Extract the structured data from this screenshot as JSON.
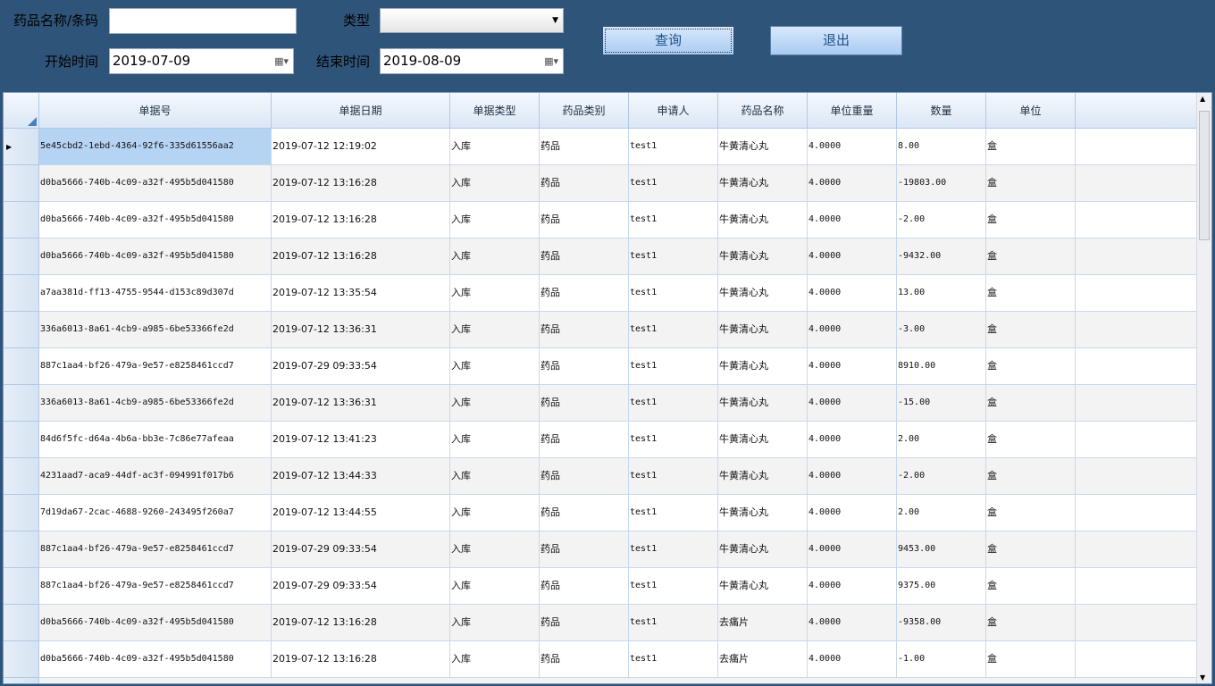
{
  "filters": {
    "name_label": "药品名称/条码",
    "type_label": "类型",
    "start_label": "开始时间",
    "start_value": "2019-07-09",
    "end_label": "结束时间",
    "end_value": "2019-08-09"
  },
  "buttons": {
    "query": "查询",
    "exit": "退出"
  },
  "table": {
    "columns": [
      "单据号",
      "单据日期",
      "单据类型",
      "药品类别",
      "申请人",
      "药品名称",
      "单位重量",
      "数量",
      "单位"
    ],
    "rows": [
      [
        "5e45cbd2-1ebd-4364-92f6-335d61556aa2",
        "2019-07-12 12:19:02",
        "入库",
        "药品",
        "test1",
        "牛黄清心丸",
        "4.0000",
        "8.00",
        "盒"
      ],
      [
        "d0ba5666-740b-4c09-a32f-495b5d041580",
        "2019-07-12 13:16:28",
        "入库",
        "药品",
        "test1",
        "牛黄清心丸",
        "4.0000",
        "-19803.00",
        "盒"
      ],
      [
        "d0ba5666-740b-4c09-a32f-495b5d041580",
        "2019-07-12 13:16:28",
        "入库",
        "药品",
        "test1",
        "牛黄清心丸",
        "4.0000",
        "-2.00",
        "盒"
      ],
      [
        "d0ba5666-740b-4c09-a32f-495b5d041580",
        "2019-07-12 13:16:28",
        "入库",
        "药品",
        "test1",
        "牛黄清心丸",
        "4.0000",
        "-9432.00",
        "盒"
      ],
      [
        "a7aa381d-ff13-4755-9544-d153c89d307d",
        "2019-07-12 13:35:54",
        "入库",
        "药品",
        "test1",
        "牛黄清心丸",
        "4.0000",
        "13.00",
        "盒"
      ],
      [
        "336a6013-8a61-4cb9-a985-6be53366fe2d",
        "2019-07-12 13:36:31",
        "入库",
        "药品",
        "test1",
        "牛黄清心丸",
        "4.0000",
        "-3.00",
        "盒"
      ],
      [
        "887c1aa4-bf26-479a-9e57-e8258461ccd7",
        "2019-07-29 09:33:54",
        "入库",
        "药品",
        "test1",
        "牛黄清心丸",
        "4.0000",
        "8910.00",
        "盒"
      ],
      [
        "336a6013-8a61-4cb9-a985-6be53366fe2d",
        "2019-07-12 13:36:31",
        "入库",
        "药品",
        "test1",
        "牛黄清心丸",
        "4.0000",
        "-15.00",
        "盒"
      ],
      [
        "84d6f5fc-d64a-4b6a-bb3e-7c86e77afeaa",
        "2019-07-12 13:41:23",
        "入库",
        "药品",
        "test1",
        "牛黄清心丸",
        "4.0000",
        "2.00",
        "盒"
      ],
      [
        "4231aad7-aca9-44df-ac3f-094991f017b6",
        "2019-07-12 13:44:33",
        "入库",
        "药品",
        "test1",
        "牛黄清心丸",
        "4.0000",
        "-2.00",
        "盒"
      ],
      [
        "7d19da67-2cac-4688-9260-243495f260a7",
        "2019-07-12 13:44:55",
        "入库",
        "药品",
        "test1",
        "牛黄清心丸",
        "4.0000",
        "2.00",
        "盒"
      ],
      [
        "887c1aa4-bf26-479a-9e57-e8258461ccd7",
        "2019-07-29 09:33:54",
        "入库",
        "药品",
        "test1",
        "牛黄清心丸",
        "4.0000",
        "9453.00",
        "盒"
      ],
      [
        "887c1aa4-bf26-479a-9e57-e8258461ccd7",
        "2019-07-29 09:33:54",
        "入库",
        "药品",
        "test1",
        "牛黄清心丸",
        "4.0000",
        "9375.00",
        "盒"
      ],
      [
        "d0ba5666-740b-4c09-a32f-495b5d041580",
        "2019-07-12 13:16:28",
        "入库",
        "药品",
        "test1",
        "去痛片",
        "4.0000",
        "-9358.00",
        "盒"
      ],
      [
        "d0ba5666-740b-4c09-a32f-495b5d041580",
        "2019-07-12 13:16:28",
        "入库",
        "药品",
        "test1",
        "去痛片",
        "4.0000",
        "-1.00",
        "盒"
      ]
    ]
  }
}
